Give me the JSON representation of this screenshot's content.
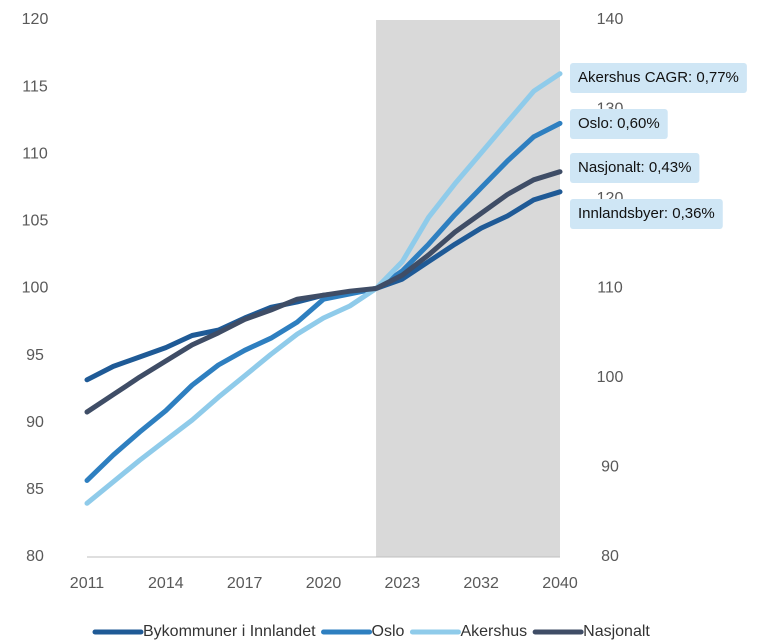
{
  "chart_data": {
    "type": "line",
    "categories": [
      "2011",
      null,
      null,
      "2014",
      null,
      null,
      "2017",
      null,
      null,
      "2020",
      null,
      null,
      "2023",
      null,
      null,
      "2032",
      null,
      null,
      "2040"
    ],
    "series": [
      {
        "name": "Bykommuner i Innlandet",
        "color": "#1f5a96",
        "values": [
          93.2,
          94.2,
          94.9,
          95.6,
          96.5,
          96.9,
          97.8,
          98.6,
          99.0,
          99.5,
          99.7,
          100,
          100.7,
          102.0,
          103.3,
          104.5,
          105.4,
          106.6,
          107.2
        ]
      },
      {
        "name": "Oslo",
        "color": "#2e7fc0",
        "values": [
          85.7,
          87.6,
          89.3,
          90.9,
          92.8,
          94.3,
          95.4,
          96.3,
          97.5,
          99.2,
          99.6,
          100,
          101.3,
          103.3,
          105.5,
          107.5,
          109.5,
          111.3,
          112.3
        ]
      },
      {
        "name": "Akershus",
        "color": "#8fcbea",
        "values": [
          84.0,
          85.6,
          87.2,
          88.7,
          90.2,
          91.9,
          93.5,
          95.1,
          96.6,
          97.8,
          98.7,
          100,
          102.0,
          105.3,
          107.8,
          110.1,
          112.4,
          114.7,
          116.0
        ]
      },
      {
        "name": "Nasjonalt",
        "color": "#3f4d66",
        "values": [
          90.8,
          92.1,
          93.4,
          94.6,
          95.8,
          96.7,
          97.7,
          98.4,
          99.2,
          99.5,
          99.8,
          100,
          101.0,
          102.5,
          104.2,
          105.6,
          107.0,
          108.1,
          108.7
        ]
      }
    ],
    "ylim": [
      80,
      120
    ],
    "yticks": [
      80,
      85,
      90,
      95,
      100,
      105,
      110,
      115,
      120
    ],
    "y2lim": [
      80,
      140
    ],
    "y2ticks": [
      80,
      90,
      100,
      110,
      120,
      130,
      140
    ],
    "annotations": [
      "Akershus CAGR: 0,77%",
      "Oslo: 0,60%",
      "Nasjonalt: 0,43%",
      "Innlandsbyer: 0,36%"
    ],
    "legend": "bottom",
    "grid": false
  }
}
